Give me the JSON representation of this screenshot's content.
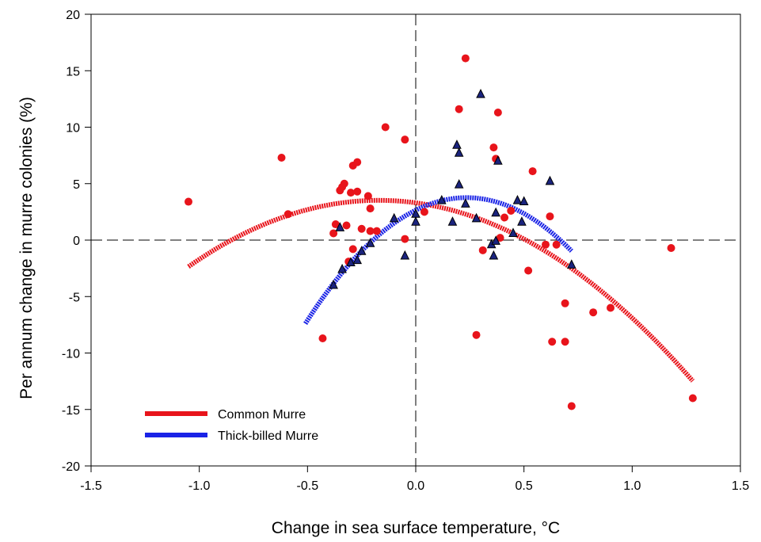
{
  "chart_data": {
    "type": "scatter",
    "xlabel": "Change in sea surface temperature, °C",
    "ylabel": "Per annum change in murre colonies (%)",
    "xlim": [
      -1.5,
      1.5
    ],
    "ylim": [
      -20,
      20
    ],
    "xticks": [
      -1.5,
      -1.0,
      -0.5,
      0.0,
      0.5,
      1.0,
      1.5
    ],
    "xtick_labels": [
      "-1.5",
      "-1.0",
      "-0.5",
      "0.0",
      "0.5",
      "1.0",
      "1.5"
    ],
    "yticks": [
      -20,
      -15,
      -10,
      -5,
      0,
      5,
      10,
      15,
      20
    ],
    "ytick_labels": [
      "-20",
      "-15",
      "-10",
      "-5",
      "0",
      "5",
      "10",
      "15",
      "20"
    ],
    "grid": false,
    "reference_lines": {
      "x": 0,
      "y": 0,
      "style": "dashed"
    },
    "legend": {
      "position": "bottom-left",
      "entries": [
        {
          "label": "Common Murre",
          "color": "#e8141b"
        },
        {
          "label": "Thick-billed Murre",
          "color": "#1a23e6"
        }
      ]
    },
    "series": [
      {
        "name": "Common Murre",
        "color": "#e8141b",
        "marker": "circle",
        "points": [
          [
            -1.05,
            3.4
          ],
          [
            -0.62,
            7.3
          ],
          [
            -0.59,
            2.3
          ],
          [
            -0.43,
            -8.7
          ],
          [
            -0.38,
            0.6
          ],
          [
            -0.37,
            1.4
          ],
          [
            -0.35,
            4.4
          ],
          [
            -0.34,
            4.7
          ],
          [
            -0.33,
            5.0
          ],
          [
            -0.32,
            1.3
          ],
          [
            -0.31,
            -1.9
          ],
          [
            -0.3,
            4.2
          ],
          [
            -0.29,
            -0.8
          ],
          [
            -0.29,
            6.6
          ],
          [
            -0.27,
            4.3
          ],
          [
            -0.27,
            6.9
          ],
          [
            -0.25,
            1.0
          ],
          [
            -0.22,
            3.9
          ],
          [
            -0.21,
            2.8
          ],
          [
            -0.21,
            0.8
          ],
          [
            -0.18,
            0.8
          ],
          [
            -0.14,
            10.0
          ],
          [
            -0.05,
            8.9
          ],
          [
            -0.05,
            0.1
          ],
          [
            0.04,
            2.5
          ],
          [
            0.2,
            11.6
          ],
          [
            0.23,
            16.1
          ],
          [
            0.28,
            -8.4
          ],
          [
            0.31,
            -0.9
          ],
          [
            0.36,
            8.2
          ],
          [
            0.37,
            7.2
          ],
          [
            0.38,
            11.3
          ],
          [
            0.39,
            0.2
          ],
          [
            0.41,
            2.0
          ],
          [
            0.44,
            2.6
          ],
          [
            0.52,
            -2.7
          ],
          [
            0.54,
            6.1
          ],
          [
            0.6,
            -0.4
          ],
          [
            0.62,
            2.1
          ],
          [
            0.63,
            -9.0
          ],
          [
            0.65,
            -0.4
          ],
          [
            0.69,
            -5.6
          ],
          [
            0.69,
            -9.0
          ],
          [
            0.72,
            -14.7
          ],
          [
            0.82,
            -6.4
          ],
          [
            0.9,
            -6.0
          ],
          [
            1.18,
            -0.7
          ],
          [
            1.28,
            -14.0
          ]
        ],
        "fit": {
          "type": "quadratic",
          "x_range": [
            -1.05,
            1.28
          ],
          "coefficients": [
            3.3,
            -2.6,
            -7.6
          ]
        }
      },
      {
        "name": "Thick-billed Murre",
        "color": "#1a23e6",
        "marker": "triangle",
        "points": [
          [
            -0.38,
            -4.0
          ],
          [
            -0.35,
            1.1
          ],
          [
            -0.34,
            -2.6
          ],
          [
            -0.3,
            -2.0
          ],
          [
            -0.27,
            -1.8
          ],
          [
            -0.25,
            -1.0
          ],
          [
            -0.21,
            -0.3
          ],
          [
            -0.1,
            1.9
          ],
          [
            -0.05,
            -1.4
          ],
          [
            0.0,
            1.6
          ],
          [
            0.0,
            2.3
          ],
          [
            0.12,
            3.5
          ],
          [
            0.17,
            1.6
          ],
          [
            0.19,
            8.4
          ],
          [
            0.2,
            7.7
          ],
          [
            0.2,
            4.9
          ],
          [
            0.23,
            3.2
          ],
          [
            0.28,
            1.9
          ],
          [
            0.3,
            12.9
          ],
          [
            0.35,
            -0.4
          ],
          [
            0.36,
            -1.4
          ],
          [
            0.37,
            -0.1
          ],
          [
            0.37,
            2.4
          ],
          [
            0.38,
            7.0
          ],
          [
            0.45,
            0.6
          ],
          [
            0.47,
            3.5
          ],
          [
            0.49,
            1.6
          ],
          [
            0.5,
            3.4
          ],
          [
            0.62,
            5.2
          ],
          [
            0.72,
            -2.2
          ]
        ],
        "fit": {
          "type": "quadratic",
          "x_range": [
            -0.51,
            0.72
          ],
          "coefficients": [
            2.65,
            9.45,
            -20.1
          ]
        }
      }
    ]
  }
}
